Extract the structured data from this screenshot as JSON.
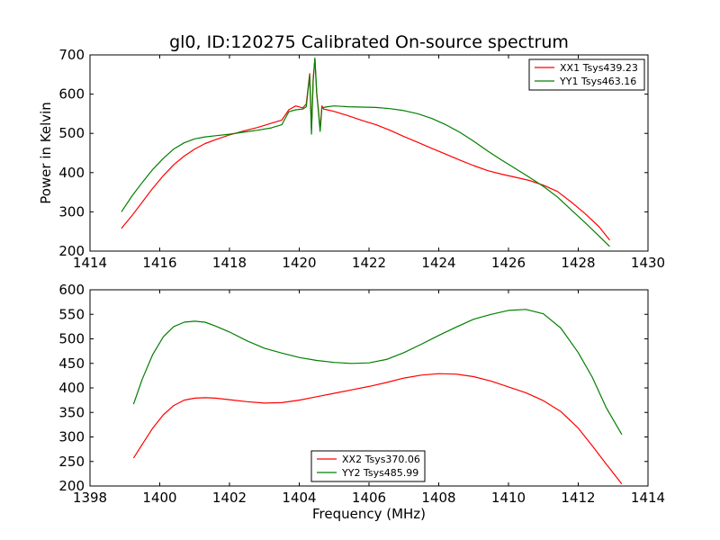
{
  "figure": {
    "title": "gl0, ID:120275 Calibrated On-source spectrum"
  },
  "chart_data": [
    {
      "type": "line",
      "title": "gl0, ID:120275 Calibrated On-source spectrum",
      "xlabel": "",
      "ylabel": "Power in Kelvin",
      "xlim": [
        1414,
        1430
      ],
      "ylim": [
        200,
        700
      ],
      "xticks": [
        1414,
        1416,
        1418,
        1420,
        1422,
        1424,
        1426,
        1428,
        1430
      ],
      "yticks": [
        200,
        300,
        400,
        500,
        600,
        700
      ],
      "grid": false,
      "legend_position": "top-right",
      "series": [
        {
          "name": "XX1 Tsys439.23",
          "color": "#ff0000",
          "x": [
            1414.9,
            1415.2,
            1415.5,
            1415.8,
            1416.1,
            1416.4,
            1416.7,
            1417.0,
            1417.3,
            1417.6,
            1418.0,
            1418.4,
            1418.8,
            1419.2,
            1419.5,
            1419.7,
            1419.9,
            1420.1,
            1420.2,
            1420.3,
            1420.35,
            1420.4,
            1420.45,
            1420.5,
            1420.55,
            1420.6,
            1420.65,
            1420.7,
            1420.8,
            1421.0,
            1421.4,
            1421.8,
            1422.2,
            1422.6,
            1423.0,
            1423.4,
            1423.8,
            1424.2,
            1424.6,
            1425.0,
            1425.4,
            1425.8,
            1426.2,
            1426.6,
            1427.0,
            1427.4,
            1427.8,
            1428.2,
            1428.6,
            1428.9
          ],
          "y": [
            258,
            290,
            325,
            360,
            392,
            420,
            442,
            460,
            474,
            484,
            496,
            506,
            515,
            526,
            534,
            560,
            570,
            565,
            575,
            652,
            510,
            640,
            690,
            600,
            560,
            510,
            570,
            562,
            560,
            556,
            545,
            533,
            522,
            508,
            492,
            477,
            462,
            447,
            432,
            418,
            405,
            396,
            388,
            380,
            368,
            352,
            325,
            295,
            262,
            228
          ]
        },
        {
          "name": "YY1 Tsys463.16",
          "color": "#008000",
          "x": [
            1414.9,
            1415.2,
            1415.5,
            1415.8,
            1416.1,
            1416.4,
            1416.7,
            1417.0,
            1417.3,
            1417.6,
            1418.0,
            1418.4,
            1418.8,
            1419.2,
            1419.5,
            1419.7,
            1419.9,
            1420.1,
            1420.2,
            1420.3,
            1420.35,
            1420.4,
            1420.45,
            1420.5,
            1420.55,
            1420.6,
            1420.65,
            1420.7,
            1420.8,
            1421.0,
            1421.4,
            1421.8,
            1422.2,
            1422.6,
            1423.0,
            1423.4,
            1423.8,
            1424.2,
            1424.6,
            1425.0,
            1425.4,
            1425.8,
            1426.2,
            1426.6,
            1427.0,
            1427.4,
            1427.8,
            1428.2,
            1428.6,
            1428.9
          ],
          "y": [
            300,
            340,
            375,
            408,
            436,
            460,
            476,
            486,
            491,
            494,
            498,
            503,
            508,
            514,
            522,
            555,
            560,
            562,
            568,
            648,
            498,
            635,
            692,
            605,
            556,
            505,
            565,
            566,
            568,
            570,
            568,
            567,
            566,
            563,
            558,
            550,
            538,
            522,
            503,
            480,
            455,
            432,
            410,
            388,
            365,
            338,
            305,
            272,
            238,
            212
          ]
        }
      ]
    },
    {
      "type": "line",
      "title": "",
      "xlabel": "Frequency (MHz)",
      "ylabel": "",
      "xlim": [
        1398,
        1414
      ],
      "ylim": [
        200,
        600
      ],
      "xticks": [
        1398,
        1400,
        1402,
        1404,
        1406,
        1408,
        1410,
        1412,
        1414
      ],
      "yticks": [
        200,
        250,
        300,
        350,
        400,
        450,
        500,
        550,
        600
      ],
      "grid": false,
      "legend_position": "bottom-center",
      "series": [
        {
          "name": "XX2 Tsys370.06",
          "color": "#ff0000",
          "x": [
            1399.25,
            1399.5,
            1399.8,
            1400.1,
            1400.4,
            1400.7,
            1401.0,
            1401.3,
            1401.6,
            1402.0,
            1402.5,
            1403.0,
            1403.5,
            1404.0,
            1404.5,
            1405.0,
            1405.5,
            1406.0,
            1406.5,
            1407.0,
            1407.5,
            1408.0,
            1408.5,
            1409.0,
            1409.5,
            1410.0,
            1410.5,
            1411.0,
            1411.5,
            1412.0,
            1412.4,
            1412.8,
            1413.25
          ],
          "y": [
            257,
            285,
            318,
            345,
            364,
            375,
            379,
            380,
            379,
            376,
            372,
            369,
            370,
            375,
            382,
            389,
            396,
            403,
            411,
            420,
            426,
            429,
            428,
            423,
            414,
            402,
            390,
            374,
            352,
            318,
            282,
            245,
            204
          ]
        },
        {
          "name": "YY2 Tsys485.99",
          "color": "#008000",
          "x": [
            1399.25,
            1399.5,
            1399.8,
            1400.1,
            1400.4,
            1400.7,
            1401.0,
            1401.3,
            1401.6,
            1402.0,
            1402.5,
            1403.0,
            1403.5,
            1404.0,
            1404.5,
            1405.0,
            1405.5,
            1406.0,
            1406.5,
            1407.0,
            1407.5,
            1408.0,
            1408.5,
            1409.0,
            1409.5,
            1410.0,
            1410.5,
            1411.0,
            1411.5,
            1412.0,
            1412.4,
            1412.8,
            1413.25
          ],
          "y": [
            367,
            418,
            468,
            504,
            525,
            534,
            536,
            534,
            526,
            514,
            496,
            481,
            471,
            462,
            456,
            452,
            450,
            451,
            458,
            472,
            489,
            507,
            524,
            540,
            550,
            558,
            560,
            551,
            522,
            472,
            422,
            360,
            305
          ]
        }
      ]
    }
  ]
}
